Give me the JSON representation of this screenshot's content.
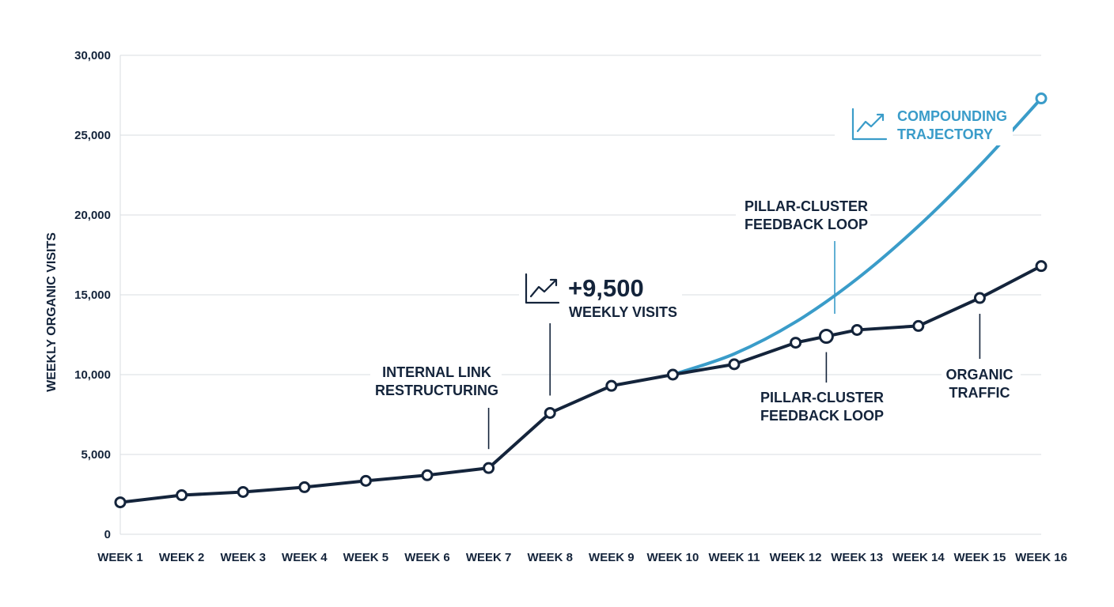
{
  "chart_data": {
    "type": "line",
    "ylabel": "WEEKLY ORGANIC VISITS",
    "xlabel": "",
    "ylim": [
      0,
      30000
    ],
    "yticks": [
      0,
      5000,
      10000,
      15000,
      20000,
      25000,
      30000
    ],
    "ytick_labels": [
      "0",
      "5,000",
      "10,000",
      "15,000",
      "20,000",
      "25,000",
      "30,000"
    ],
    "grid": true,
    "categories": [
      "WEEK 1",
      "WEEK 2",
      "WEEK 3",
      "WEEK 4",
      "WEEK 5",
      "WEEK 6",
      "WEEK 7",
      "WEEK 8",
      "WEEK 9",
      "WEEK 10",
      "WEEK 11",
      "WEEK 12",
      "WEEK 13",
      "WEEK 14",
      "WEEK 15",
      "WEEK 16"
    ],
    "series": [
      {
        "name": "ORGANIC TRAFFIC",
        "color": "#14243b",
        "x": [
          1,
          2,
          3,
          4,
          5,
          6,
          7,
          8,
          9,
          10,
          11,
          12,
          12.5,
          13,
          14,
          15,
          16
        ],
        "values": [
          2000,
          2450,
          2650,
          2950,
          3350,
          3700,
          4150,
          7600,
          9300,
          10000,
          10650,
          12000,
          12400,
          12800,
          13050,
          14800,
          16800
        ]
      },
      {
        "name": "COMPOUNDING TRAJECTORY",
        "color": "#3a9cc9",
        "x": [
          10,
          11,
          12,
          13,
          14,
          15,
          16
        ],
        "values": [
          10000,
          11300,
          13300,
          16000,
          19300,
          23100,
          27300
        ]
      }
    ],
    "annotations": {
      "internal_link": [
        "INTERNAL LINK",
        "RESTRUCTURING"
      ],
      "gain_value": "+9,500",
      "gain_label": "WEEKLY VISITS",
      "compounding": [
        "COMPOUNDING",
        "TRAJECTORY"
      ],
      "pillar_upper": [
        "PILLAR-CLUSTER",
        "FEEDBACK LOOP"
      ],
      "pillar_lower": [
        "PILLAR-CLUSTER",
        "FEEDBACK LOOP"
      ],
      "organic": [
        "ORGANIC",
        "TRAFFIC"
      ]
    }
  },
  "icons": {
    "gain": "trend-up-icon",
    "compounding": "trend-up-icon"
  }
}
